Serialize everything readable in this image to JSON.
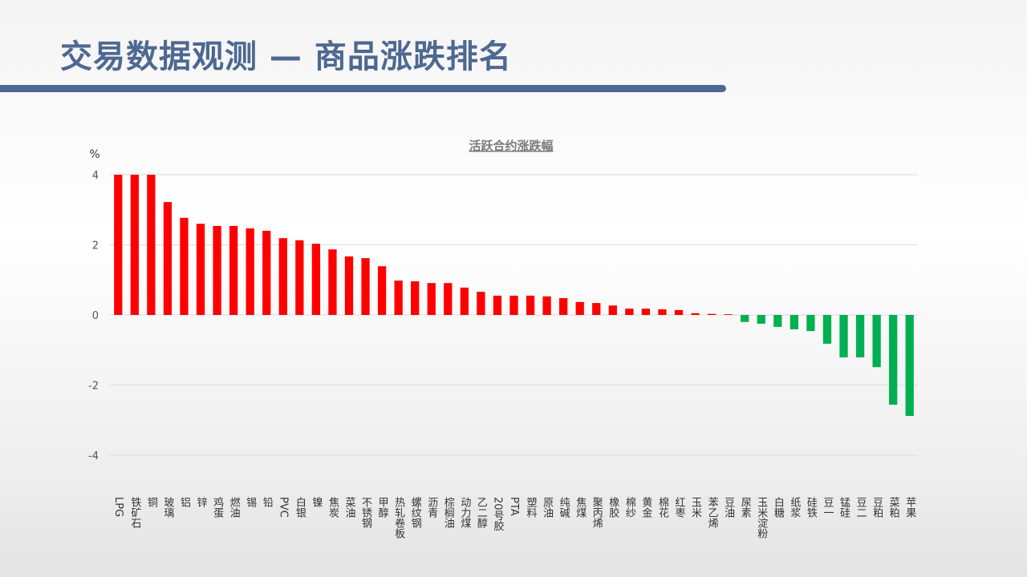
{
  "header": {
    "title": "交易数据观测 — 商品涨跌排名"
  },
  "chart_data": {
    "type": "bar",
    "title": "活跃合约涨跌幅",
    "y_unit": "%",
    "categories": [
      "LPG",
      "铁矿石",
      "铜",
      "玻璃",
      "铝",
      "锌",
      "鸡蛋",
      "燃油",
      "锡",
      "铅",
      "PVC",
      "白银",
      "镍",
      "焦炭",
      "菜油",
      "不锈钢",
      "甲醇",
      "热轧卷板",
      "螺纹钢",
      "沥青",
      "棕榈油",
      "动力煤",
      "乙二醇",
      "20号胶",
      "PTA",
      "塑料",
      "原油",
      "纯碱",
      "焦煤",
      "聚丙烯",
      "橡胶",
      "棉纱",
      "黄金",
      "棉花",
      "红枣",
      "玉米",
      "苯乙烯",
      "豆油",
      "尿素",
      "玉米淀粉",
      "白糖",
      "纸浆",
      "硅铁",
      "豆一",
      "锰硅",
      "豆二",
      "豆粕",
      "菜粕",
      "苹果"
    ],
    "values": [
      4,
      4,
      4,
      3.22,
      2.77,
      2.6,
      2.54,
      2.54,
      2.47,
      2.4,
      2.19,
      2.13,
      2.03,
      1.87,
      1.67,
      1.62,
      1.39,
      0.98,
      0.96,
      0.91,
      0.91,
      0.78,
      0.66,
      0.55,
      0.55,
      0.55,
      0.53,
      0.48,
      0.37,
      0.34,
      0.27,
      0.18,
      0.18,
      0.16,
      0.14,
      0.05,
      0.03,
      0.02,
      -0.2,
      -0.25,
      -0.34,
      -0.41,
      -0.46,
      -0.82,
      -1.21,
      -1.21,
      -1.49,
      -2.56,
      -2.88
    ],
    "color": "#ff0000",
    "negative_color": "#00b050",
    "ylim": [
      -4,
      4
    ],
    "yticks": [
      -4,
      -2,
      0,
      2,
      4
    ],
    "grid": true
  }
}
